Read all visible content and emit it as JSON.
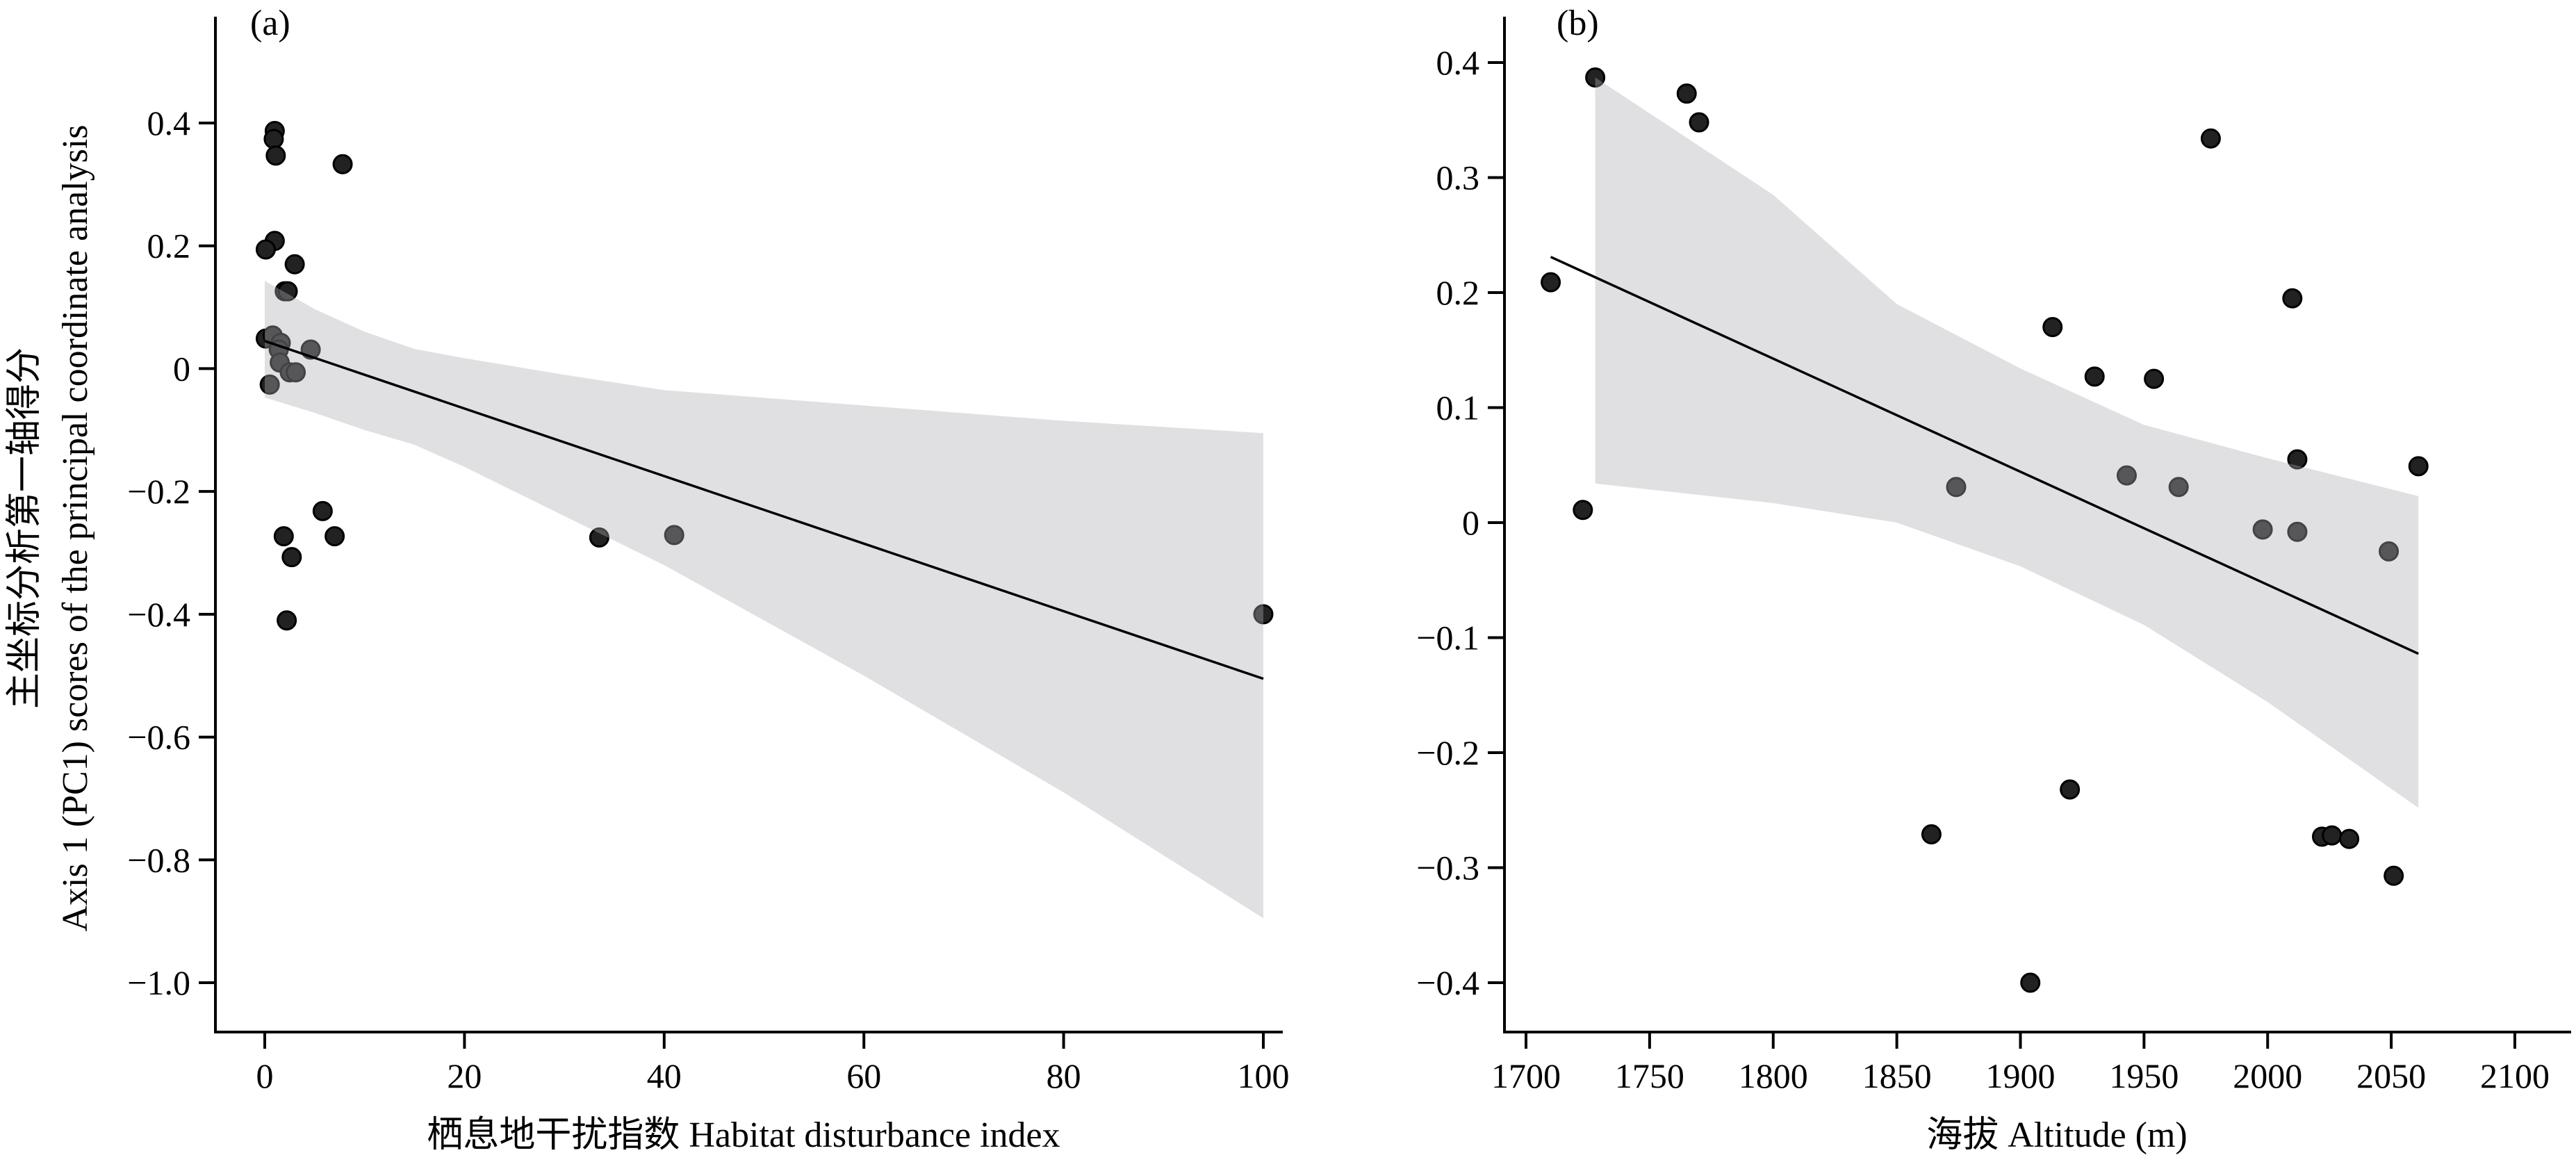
{
  "chart_data": [
    {
      "type": "scatter",
      "panel_label": "(a)",
      "xlabel": "栖息地干扰指数 Habitat disturbance index",
      "ylabel_cn": "主坐标分析第一轴得分",
      "ylabel_en": "Axis 1 (PC1) scores of the principal coordinate analysis",
      "xlim": [
        -5,
        103
      ],
      "ylim": [
        -1.07,
        0.55
      ],
      "xticks": [
        0,
        20,
        40,
        60,
        80,
        100
      ],
      "xtick_labels": [
        "0",
        "20",
        "40",
        "60",
        "80",
        "100"
      ],
      "yticks": [
        0.4,
        0.2,
        0,
        -0.2,
        -0.4,
        -0.6,
        -0.8,
        -1.0
      ],
      "ytick_labels": [
        "0.4",
        "0.2",
        "0",
        "−0.2",
        "−0.4",
        "−0.6",
        "−0.8",
        "−1.0"
      ],
      "points": [
        [
          1.0,
          0.387
        ],
        [
          0.9,
          0.374
        ],
        [
          1.1,
          0.347
        ],
        [
          7.8,
          0.333
        ],
        [
          1.0,
          0.208
        ],
        [
          0.1,
          0.194
        ],
        [
          3.0,
          0.17
        ],
        [
          2.0,
          0.126
        ],
        [
          2.3,
          0.126
        ],
        [
          0.1,
          0.049
        ],
        [
          0.8,
          0.054
        ],
        [
          1.6,
          0.042
        ],
        [
          1.4,
          0.031
        ],
        [
          4.6,
          0.031
        ],
        [
          1.5,
          0.01
        ],
        [
          2.5,
          -0.006
        ],
        [
          3.1,
          -0.006
        ],
        [
          0.5,
          -0.026
        ],
        [
          5.8,
          -0.232
        ],
        [
          1.9,
          -0.273
        ],
        [
          7.0,
          -0.273
        ],
        [
          2.7,
          -0.307
        ],
        [
          2.2,
          -0.41
        ],
        [
          33.5,
          -0.275
        ],
        [
          41.0,
          -0.271
        ],
        [
          100.0,
          -0.4
        ]
      ],
      "fit": {
        "x": [
          0,
          100
        ],
        "y": [
          0.045,
          -0.505
        ]
      },
      "ci_upper": {
        "x": [
          0,
          5,
          10,
          15,
          20,
          30,
          40,
          60,
          80,
          100
        ],
        "y": [
          0.143,
          0.097,
          0.06,
          0.032,
          0.017,
          -0.01,
          -0.035,
          -0.06,
          -0.085,
          -0.105
        ]
      },
      "ci_lower": {
        "x": [
          0,
          5,
          10,
          15,
          20,
          30,
          40,
          60,
          80,
          100
        ],
        "y": [
          -0.047,
          -0.072,
          -0.1,
          -0.124,
          -0.16,
          -0.24,
          -0.32,
          -0.5,
          -0.69,
          -0.895
        ]
      }
    },
    {
      "type": "scatter",
      "panel_label": "(b)",
      "xlabel": "海拔 Altitude (m)",
      "xlim": [
        1680,
        2110
      ],
      "ylim": [
        -0.445,
        0.44
      ],
      "xticks": [
        1700,
        1750,
        1800,
        1850,
        1900,
        1950,
        2000,
        2050,
        2100
      ],
      "xtick_labels": [
        "1700",
        "1750",
        "1800",
        "1850",
        "1900",
        "1950",
        "2000",
        "2050",
        "2100"
      ],
      "yticks": [
        0.4,
        0.3,
        0.2,
        0.1,
        0,
        -0.1,
        -0.2,
        -0.3,
        -0.4
      ],
      "ytick_labels": [
        "0.4",
        "0.3",
        "0.2",
        "0.1",
        "0",
        "−0.1",
        "−0.2",
        "−0.3",
        "−0.4"
      ],
      "points": [
        [
          1710,
          0.209
        ],
        [
          1723,
          0.011
        ],
        [
          1728,
          0.387
        ],
        [
          1765,
          0.373
        ],
        [
          1770,
          0.348
        ],
        [
          1864,
          -0.271
        ],
        [
          1874,
          0.031
        ],
        [
          1904,
          -0.4
        ],
        [
          1913,
          0.17
        ],
        [
          1920,
          -0.232
        ],
        [
          1930,
          0.127
        ],
        [
          1943,
          0.041
        ],
        [
          1954,
          0.125
        ],
        [
          1964,
          0.031
        ],
        [
          1977,
          0.334
        ],
        [
          1998,
          -0.006
        ],
        [
          2010,
          0.195
        ],
        [
          2012,
          0.055
        ],
        [
          2012,
          -0.008
        ],
        [
          2022,
          -0.273
        ],
        [
          2026,
          -0.272
        ],
        [
          2033,
          -0.275
        ],
        [
          2049,
          -0.025
        ],
        [
          2051,
          -0.307
        ],
        [
          2061,
          0.049
        ]
      ],
      "fit": {
        "x": [
          1710,
          2061
        ],
        "y": [
          0.231,
          -0.114
        ]
      },
      "ci_upper": {
        "x": [
          1728,
          1800,
          1850,
          1900,
          1950,
          2000,
          2061
        ],
        "y": [
          0.387,
          0.285,
          0.19,
          0.134,
          0.085,
          0.056,
          0.023
        ]
      },
      "ci_lower": {
        "x": [
          1728,
          1800,
          1850,
          1900,
          1950,
          2000,
          2061
        ],
        "y": [
          0.034,
          0.017,
          0.0,
          -0.038,
          -0.089,
          -0.156,
          -0.248
        ]
      }
    }
  ],
  "colors": {
    "point": "#222222",
    "band": "#aeadb2",
    "line": "#000000"
  }
}
